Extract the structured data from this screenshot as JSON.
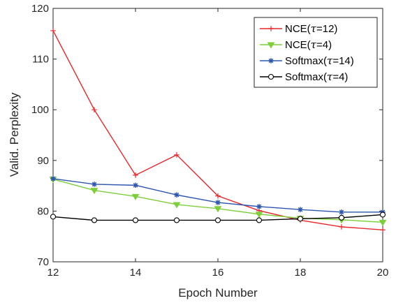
{
  "chart_data": {
    "type": "line",
    "xlabel": "Epoch Number",
    "ylabel": "Valid. Perplexity",
    "xlim": [
      12,
      20
    ],
    "ylim": [
      70,
      120
    ],
    "xticks": [
      12,
      14,
      16,
      18,
      20
    ],
    "yticks": [
      70,
      80,
      90,
      100,
      110,
      120
    ],
    "grid": false,
    "legend_position": "top-right",
    "x": [
      12,
      13,
      14,
      15,
      16,
      17,
      18,
      19,
      20
    ],
    "series": [
      {
        "name": "NCE(τ=12)",
        "name_parts": {
          "prefix": "NCE(",
          "symbol": "τ",
          "suffix": "=12)"
        },
        "marker": "plus",
        "color": "#e8262a",
        "values": [
          115.6,
          100.0,
          87.1,
          91.1,
          83.0,
          80.1,
          78.2,
          76.9,
          76.3
        ]
      },
      {
        "name": "NCE(τ=4)",
        "name_parts": {
          "prefix": "NCE(",
          "symbol": "τ",
          "suffix": "=4)"
        },
        "marker": "triangle-down",
        "color": "#7dcf3a",
        "values": [
          86.3,
          84.1,
          82.9,
          81.3,
          80.5,
          79.4,
          78.6,
          78.3,
          77.8
        ]
      },
      {
        "name": "Softmax(τ=14)",
        "name_parts": {
          "prefix": "Softmax(",
          "symbol": "τ",
          "suffix": "=14)"
        },
        "marker": "star",
        "color": "#2c56b0",
        "values": [
          86.4,
          85.3,
          85.1,
          83.2,
          81.7,
          80.9,
          80.3,
          79.8,
          79.8
        ]
      },
      {
        "name": "Softmax(τ=4)",
        "name_parts": {
          "prefix": "Softmax(",
          "symbol": "τ",
          "suffix": "=4)"
        },
        "marker": "circle",
        "color": "#000000",
        "values": [
          78.9,
          78.2,
          78.2,
          78.2,
          78.2,
          78.2,
          78.5,
          78.7,
          79.3
        ]
      }
    ]
  }
}
